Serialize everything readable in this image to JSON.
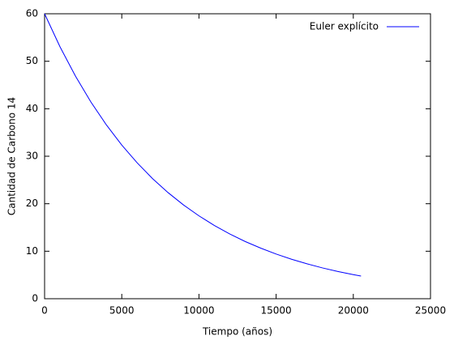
{
  "chart_data": {
    "type": "line",
    "xlabel": "Tiempo (años)",
    "ylabel": "Cantidad de Carbono 14",
    "x": [
      0,
      1000,
      2000,
      3000,
      4000,
      5000,
      6000,
      7000,
      8000,
      9000,
      10000,
      11000,
      12000,
      13000,
      14000,
      15000,
      16000,
      17000,
      18000,
      19000,
      20000,
      20500
    ],
    "series": [
      {
        "name": "Euler explícito",
        "color": "#0000ff",
        "values": [
          60,
          53.03,
          46.87,
          41.42,
          36.61,
          32.35,
          28.6,
          25.27,
          22.34,
          19.74,
          17.45,
          15.42,
          13.63,
          12.04,
          10.65,
          9.41,
          8.31,
          7.35,
          6.49,
          5.74,
          5.07,
          4.77
        ]
      }
    ],
    "xlim": [
      0,
      25000
    ],
    "xticks": [
      0,
      5000,
      10000,
      15000,
      20000,
      25000
    ],
    "ylim": [
      0,
      60
    ],
    "yticks": [
      0,
      10,
      20,
      30,
      40,
      50,
      60
    ],
    "legend": "top-right",
    "grid": false
  }
}
